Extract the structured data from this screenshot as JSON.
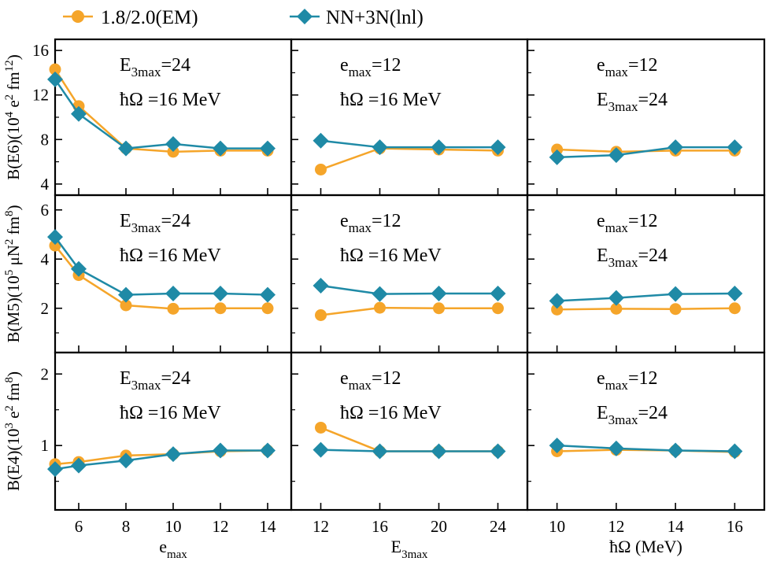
{
  "legend": [
    {
      "label": "1.8/2.0(EM)",
      "color": "#f5a52a",
      "marker": "circle"
    },
    {
      "label": "NN+3N(lnl)",
      "color": "#1f8aa6",
      "marker": "diamond"
    }
  ],
  "chart_data": {
    "type": "line",
    "layout": "3x3 grid of panels",
    "columns": [
      {
        "xlabel": "e_max",
        "xlim": [
          5,
          15
        ],
        "xticks": [
          6,
          8,
          10,
          12,
          14
        ],
        "x": [
          5,
          6,
          8,
          10,
          12,
          14
        ]
      },
      {
        "xlabel": "E_3max",
        "xlim": [
          10,
          26
        ],
        "xticks": [
          12,
          16,
          20,
          24
        ],
        "x": [
          12,
          16,
          20,
          24
        ]
      },
      {
        "xlabel": "ħΩ (MeV)",
        "xlim": [
          9,
          17
        ],
        "xticks": [
          10,
          12,
          14,
          16
        ],
        "x": [
          10,
          12,
          14,
          16
        ]
      }
    ],
    "rows": [
      {
        "ylabel": "B(E6)(10^4 e^2 fm^12)",
        "ylim": [
          3,
          17
        ],
        "yticks": [
          4,
          8,
          12,
          16
        ],
        "yticklabels": [
          "4",
          "8",
          "12",
          "16"
        ],
        "yminor": [
          6,
          10,
          14
        ]
      },
      {
        "ylabel": "B(M5)(10^5 μN^2 fm^8)",
        "ylim": [
          0.2,
          6.6
        ],
        "yticks": [
          2,
          4,
          6
        ],
        "yticklabels": [
          "2",
          "4",
          "6"
        ],
        "yminor": [
          1,
          3,
          5
        ]
      },
      {
        "ylabel": "B(E4)(10^3 e^2 fm^8)",
        "ylim": [
          0.1,
          2.3
        ],
        "yticks": [
          1,
          2
        ],
        "yticklabels": [
          "1",
          "2"
        ],
        "yminor": [
          0.5,
          1.5
        ]
      }
    ],
    "annotations": [
      [
        [
          "E_3max=24",
          "ħΩ =16 MeV"
        ],
        [
          "e_max=12",
          "ħΩ =16 MeV"
        ],
        [
          "e_max=12",
          "E_3max=24"
        ]
      ],
      [
        [
          "E_3max=24",
          "ħΩ =16 MeV"
        ],
        [
          "e_max=12",
          "ħΩ =16 MeV"
        ],
        [
          "e_max=12",
          "E_3max=24"
        ]
      ],
      [
        [
          "E_3max=24",
          "ħΩ =16 MeV"
        ],
        [
          "e_max=12",
          "ħΩ =16 MeV"
        ],
        [
          "e_max=12",
          "E_3max=24"
        ]
      ]
    ],
    "series": [
      {
        "name": "1.8/2.0(EM)",
        "values": [
          [
            [
              14.3,
              11.0,
              7.2,
              6.9,
              7.0,
              7.0
            ],
            [
              5.3,
              7.2,
              7.1,
              7.0
            ],
            [
              7.1,
              6.9,
              7.0,
              7.0
            ]
          ],
          [
            [
              4.55,
              3.35,
              2.12,
              1.98,
              2.0,
              2.0
            ],
            [
              1.72,
              2.02,
              2.0,
              2.0
            ],
            [
              1.95,
              1.98,
              1.97,
              2.0
            ]
          ],
          [
            [
              0.74,
              0.77,
              0.86,
              0.88,
              0.92,
              0.93
            ],
            [
              1.25,
              0.92,
              0.92,
              0.92
            ],
            [
              0.92,
              0.94,
              0.93,
              0.91
            ]
          ]
        ]
      },
      {
        "name": "NN+3N(lnl)",
        "values": [
          [
            [
              13.4,
              10.3,
              7.2,
              7.6,
              7.2,
              7.2
            ],
            [
              7.9,
              7.3,
              7.3,
              7.3
            ],
            [
              6.4,
              6.6,
              7.3,
              7.3
            ]
          ],
          [
            [
              4.9,
              3.6,
              2.55,
              2.6,
              2.6,
              2.55
            ],
            [
              2.92,
              2.58,
              2.6,
              2.6
            ],
            [
              2.3,
              2.42,
              2.58,
              2.6
            ]
          ],
          [
            [
              0.67,
              0.72,
              0.79,
              0.88,
              0.93,
              0.93
            ],
            [
              0.94,
              0.92,
              0.92,
              0.92
            ],
            [
              1.0,
              0.96,
              0.93,
              0.92
            ]
          ]
        ]
      }
    ]
  }
}
